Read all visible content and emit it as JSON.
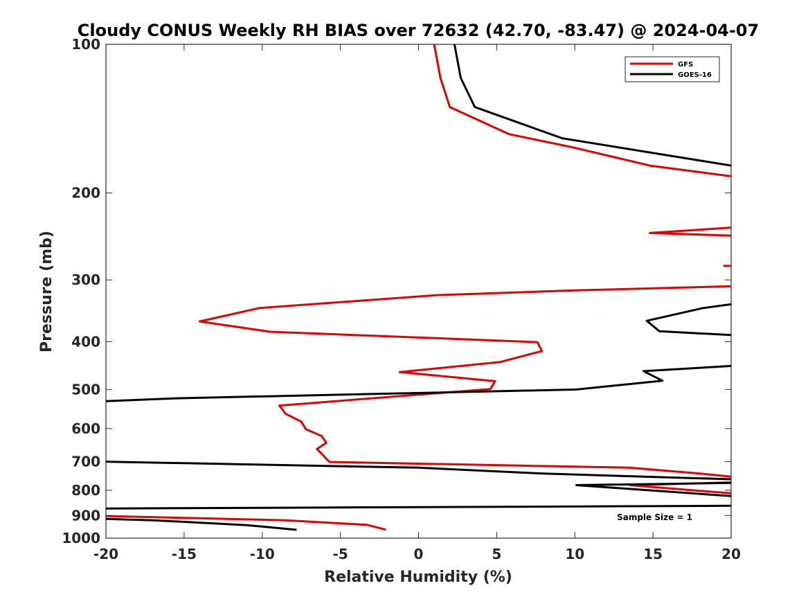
{
  "chart_data": {
    "type": "line",
    "title": "Cloudy CONUS Weekly RH BIAS over 72632 (42.70, -83.47) @ 2024-04-07",
    "xlabel": "Relative Humidity (%)",
    "ylabel": "Pressure (mb)",
    "xlim": [
      -20,
      20
    ],
    "ylim": [
      100,
      1000
    ],
    "yscale": "log",
    "y_reversed": true,
    "xticks": [
      -20,
      -15,
      -10,
      -5,
      0,
      5,
      10,
      15,
      20
    ],
    "xtick_labels": [
      "-20",
      "-15",
      "-10",
      "-5",
      "0",
      "5",
      "10",
      "15",
      "20"
    ],
    "yticks": [
      100,
      200,
      300,
      400,
      500,
      600,
      700,
      800,
      900,
      1000
    ],
    "ytick_labels": [
      "100",
      "200",
      "300",
      "400",
      "500",
      "600",
      "700",
      "800",
      "900",
      "1000"
    ],
    "grid": false,
    "legend_position": "top-right",
    "annotation": "Sample Size = 1",
    "series": [
      {
        "name": "GFS",
        "color": "#e00000",
        "segments": [
          [
            [
              1.0,
              100
            ],
            [
              1.4,
              117
            ],
            [
              2.0,
              134
            ],
            [
              5.8,
              152
            ],
            [
              10.0,
              162
            ],
            [
              14.8,
              176
            ],
            [
              20.0,
              185
            ]
          ],
          [
            [
              20.0,
              235
            ],
            [
              14.8,
              241
            ],
            [
              20.0,
              244
            ]
          ],
          [
            [
              19.5,
              281
            ],
            [
              20.0,
              281
            ]
          ],
          [
            [
              20.0,
              309
            ],
            [
              10.0,
              315
            ],
            [
              1.2,
              322
            ],
            [
              -10.2,
              342
            ],
            [
              -14.0,
              364
            ],
            [
              -9.5,
              382
            ],
            [
              7.6,
              401
            ],
            [
              7.9,
              418
            ],
            [
              5.2,
              440
            ],
            [
              -1.2,
              461
            ],
            [
              4.9,
              481
            ],
            [
              4.6,
              499
            ],
            [
              -8.9,
              539
            ],
            [
              -8.5,
              560
            ],
            [
              -7.5,
              581
            ],
            [
              -7.2,
              602
            ],
            [
              -6.2,
              621
            ],
            [
              -5.9,
              641
            ],
            [
              -6.5,
              660
            ],
            [
              -6.1,
              680
            ],
            [
              -5.7,
              701
            ],
            [
              13.5,
              720
            ],
            [
              18.0,
              740
            ],
            [
              20.0,
              751
            ]
          ],
          [
            [
              20.0,
              771
            ],
            [
              13.5,
              781
            ],
            [
              18.0,
              802
            ],
            [
              20.0,
              811
            ]
          ],
          [
            [
              -20.0,
              902
            ],
            [
              -8.5,
              920
            ],
            [
              -3.3,
              940
            ],
            [
              -2.1,
              961
            ]
          ]
        ]
      },
      {
        "name": "GOES-16",
        "color": "#000000",
        "segments": [
          [
            [
              2.3,
              100
            ],
            [
              2.7,
              117
            ],
            [
              3.6,
              134
            ],
            [
              9.2,
              155
            ],
            [
              20.0,
              176
            ]
          ],
          [
            [
              20.0,
              336
            ],
            [
              18.2,
              342
            ],
            [
              14.6,
              363
            ],
            [
              15.4,
              381
            ],
            [
              20.0,
              388
            ]
          ],
          [
            [
              20.0,
              448
            ],
            [
              14.4,
              459
            ],
            [
              15.6,
              480
            ],
            [
              10.1,
              500
            ],
            [
              -15.5,
              521
            ],
            [
              -20.0,
              528
            ]
          ],
          [
            [
              -20.0,
              700
            ],
            [
              0.0,
              720
            ],
            [
              8.0,
              740
            ],
            [
              20.0,
              760
            ]
          ],
          [
            [
              20.0,
              773
            ],
            [
              10.1,
              781
            ],
            [
              20.0,
              822
            ]
          ],
          [
            [
              -20.0,
              871
            ],
            [
              20.0,
              860
            ]
          ],
          [
            [
              -20.0,
              914
            ],
            [
              -17.0,
              920
            ],
            [
              -11.0,
              941
            ],
            [
              -7.8,
              962
            ]
          ]
        ]
      }
    ]
  }
}
